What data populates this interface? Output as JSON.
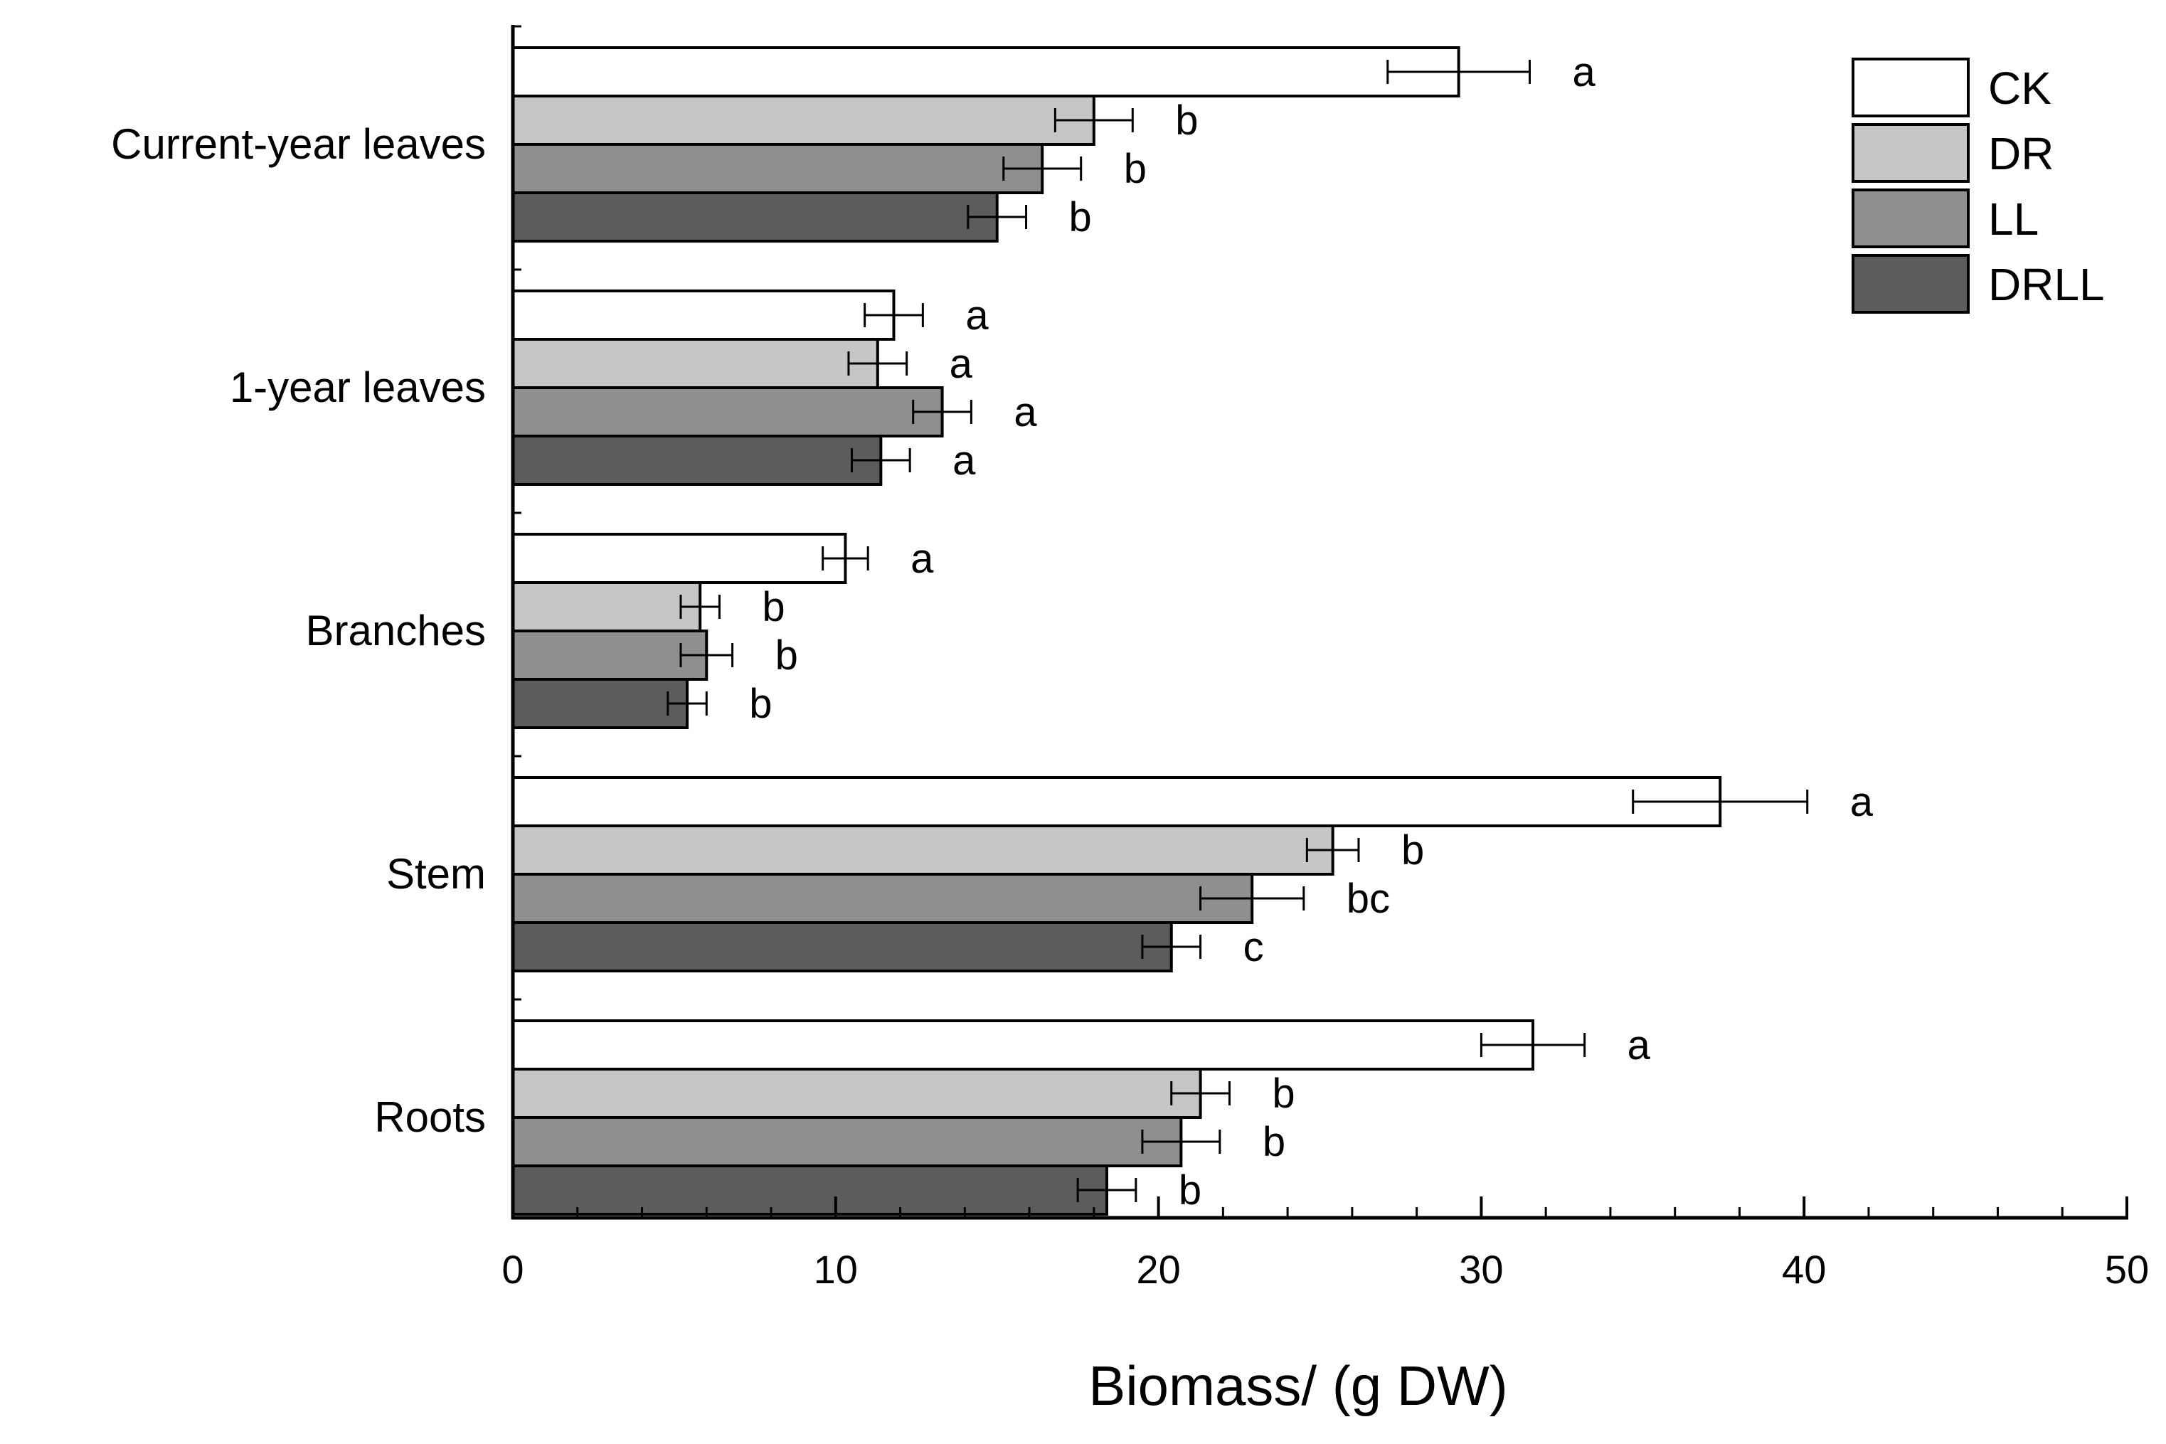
{
  "chart_data": {
    "type": "bar",
    "orientation": "horizontal",
    "title": "",
    "xlabel": "Biomass/  (g DW)",
    "ylabel": "",
    "xlim": [
      0,
      50
    ],
    "x_major_ticks": [
      0,
      10,
      20,
      30,
      40,
      50
    ],
    "x_minor_step": 2,
    "tick_labels": [
      "0",
      "10",
      "20",
      "30",
      "40",
      "50"
    ],
    "grid": false,
    "legend_position": "top-right",
    "categories": [
      "Current-year leaves",
      "1-year leaves",
      "Branches",
      "Stem",
      "Roots"
    ],
    "series": [
      {
        "name": "CK",
        "color": "#ffffff",
        "values": [
          29.3,
          11.8,
          10.3,
          37.4,
          31.6
        ],
        "errors": [
          2.2,
          0.9,
          0.7,
          2.7,
          1.6
        ],
        "sig": [
          "a",
          "a",
          "a",
          "a",
          "a"
        ]
      },
      {
        "name": "DR",
        "color": "#c6c6c6",
        "values": [
          18.0,
          11.3,
          5.8,
          25.4,
          21.3
        ],
        "errors": [
          1.2,
          0.9,
          0.6,
          0.8,
          0.9
        ],
        "sig": [
          "b",
          "a",
          "b",
          "b",
          "b"
        ]
      },
      {
        "name": "LL",
        "color": "#8f8f8f",
        "values": [
          16.4,
          13.3,
          6.0,
          22.9,
          20.7
        ],
        "errors": [
          1.2,
          0.9,
          0.8,
          1.6,
          1.2
        ],
        "sig": [
          "b",
          "a",
          "b",
          "bc",
          "b"
        ]
      },
      {
        "name": "DRLL",
        "color": "#5c5c5c",
        "values": [
          15.0,
          11.4,
          5.4,
          20.4,
          18.4
        ],
        "errors": [
          0.9,
          0.9,
          0.6,
          0.9,
          0.9
        ],
        "sig": [
          "b",
          "a",
          "b",
          "c",
          "b"
        ]
      }
    ]
  }
}
